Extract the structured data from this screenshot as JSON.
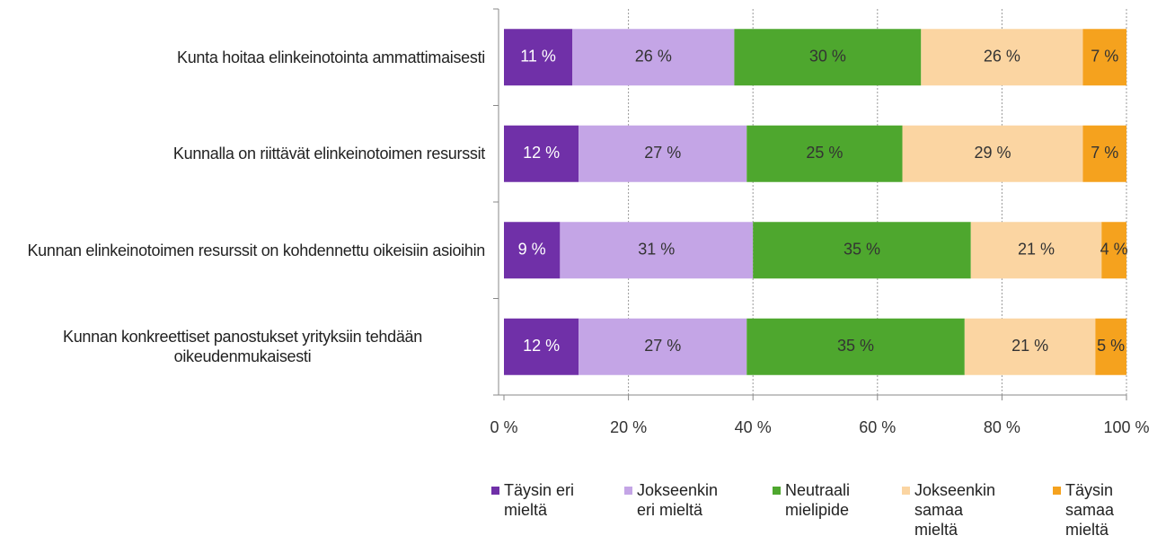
{
  "chart_data": {
    "type": "stacked_barh",
    "categories": [
      "Kunta hoitaa elinkeinotointa ammattimaisesti",
      "Kunnalla on riittävät elinkeinotoimen resurssit",
      "Kunnan elinkeinotoimen resurssit on kohdennettu oikeisiin asioihin",
      "Kunnan konkreettiset panostukset yrityksiin tehdään oikeudenmukaisesti"
    ],
    "series": [
      {
        "name": "Täysin eri mieltä",
        "color": "#7030a8",
        "values": [
          11,
          12,
          9,
          12
        ],
        "value_labels": [
          "11 %",
          "12 %",
          "9 %",
          "12 %"
        ]
      },
      {
        "name": "Jokseenkin eri mieltä",
        "color": "#c4a5e6",
        "values": [
          26,
          27,
          31,
          27
        ],
        "value_labels": [
          "26 %",
          "27 %",
          "31 %",
          "27 %"
        ]
      },
      {
        "name": "Neutraali mielipide",
        "color": "#4ea72e",
        "values": [
          30,
          25,
          35,
          35
        ],
        "value_labels": [
          "30 %",
          "25 %",
          "35 %",
          "35 %"
        ]
      },
      {
        "name": "Jokseenkin samaa mieltä",
        "color": "#fbd5a2",
        "values": [
          26,
          29,
          21,
          21
        ],
        "value_labels": [
          "26 %",
          "29 %",
          "21 %",
          "21 %"
        ]
      },
      {
        "name": "Täysin samaa mieltä",
        "color": "#f5a21e",
        "values": [
          7,
          7,
          4,
          5
        ],
        "value_labels": [
          "7 %",
          "7 %",
          "4 %",
          "5 %"
        ]
      }
    ],
    "xlim": [
      0,
      100
    ],
    "xticks": [
      {
        "value": 0,
        "label": "0 %"
      },
      {
        "value": 20,
        "label": "20 %"
      },
      {
        "value": 40,
        "label": "40 %"
      },
      {
        "value": 60,
        "label": "60 %"
      },
      {
        "value": 80,
        "label": "80 %"
      },
      {
        "value": 100,
        "label": "100 %"
      }
    ],
    "grid": true,
    "legend": "bottom"
  }
}
